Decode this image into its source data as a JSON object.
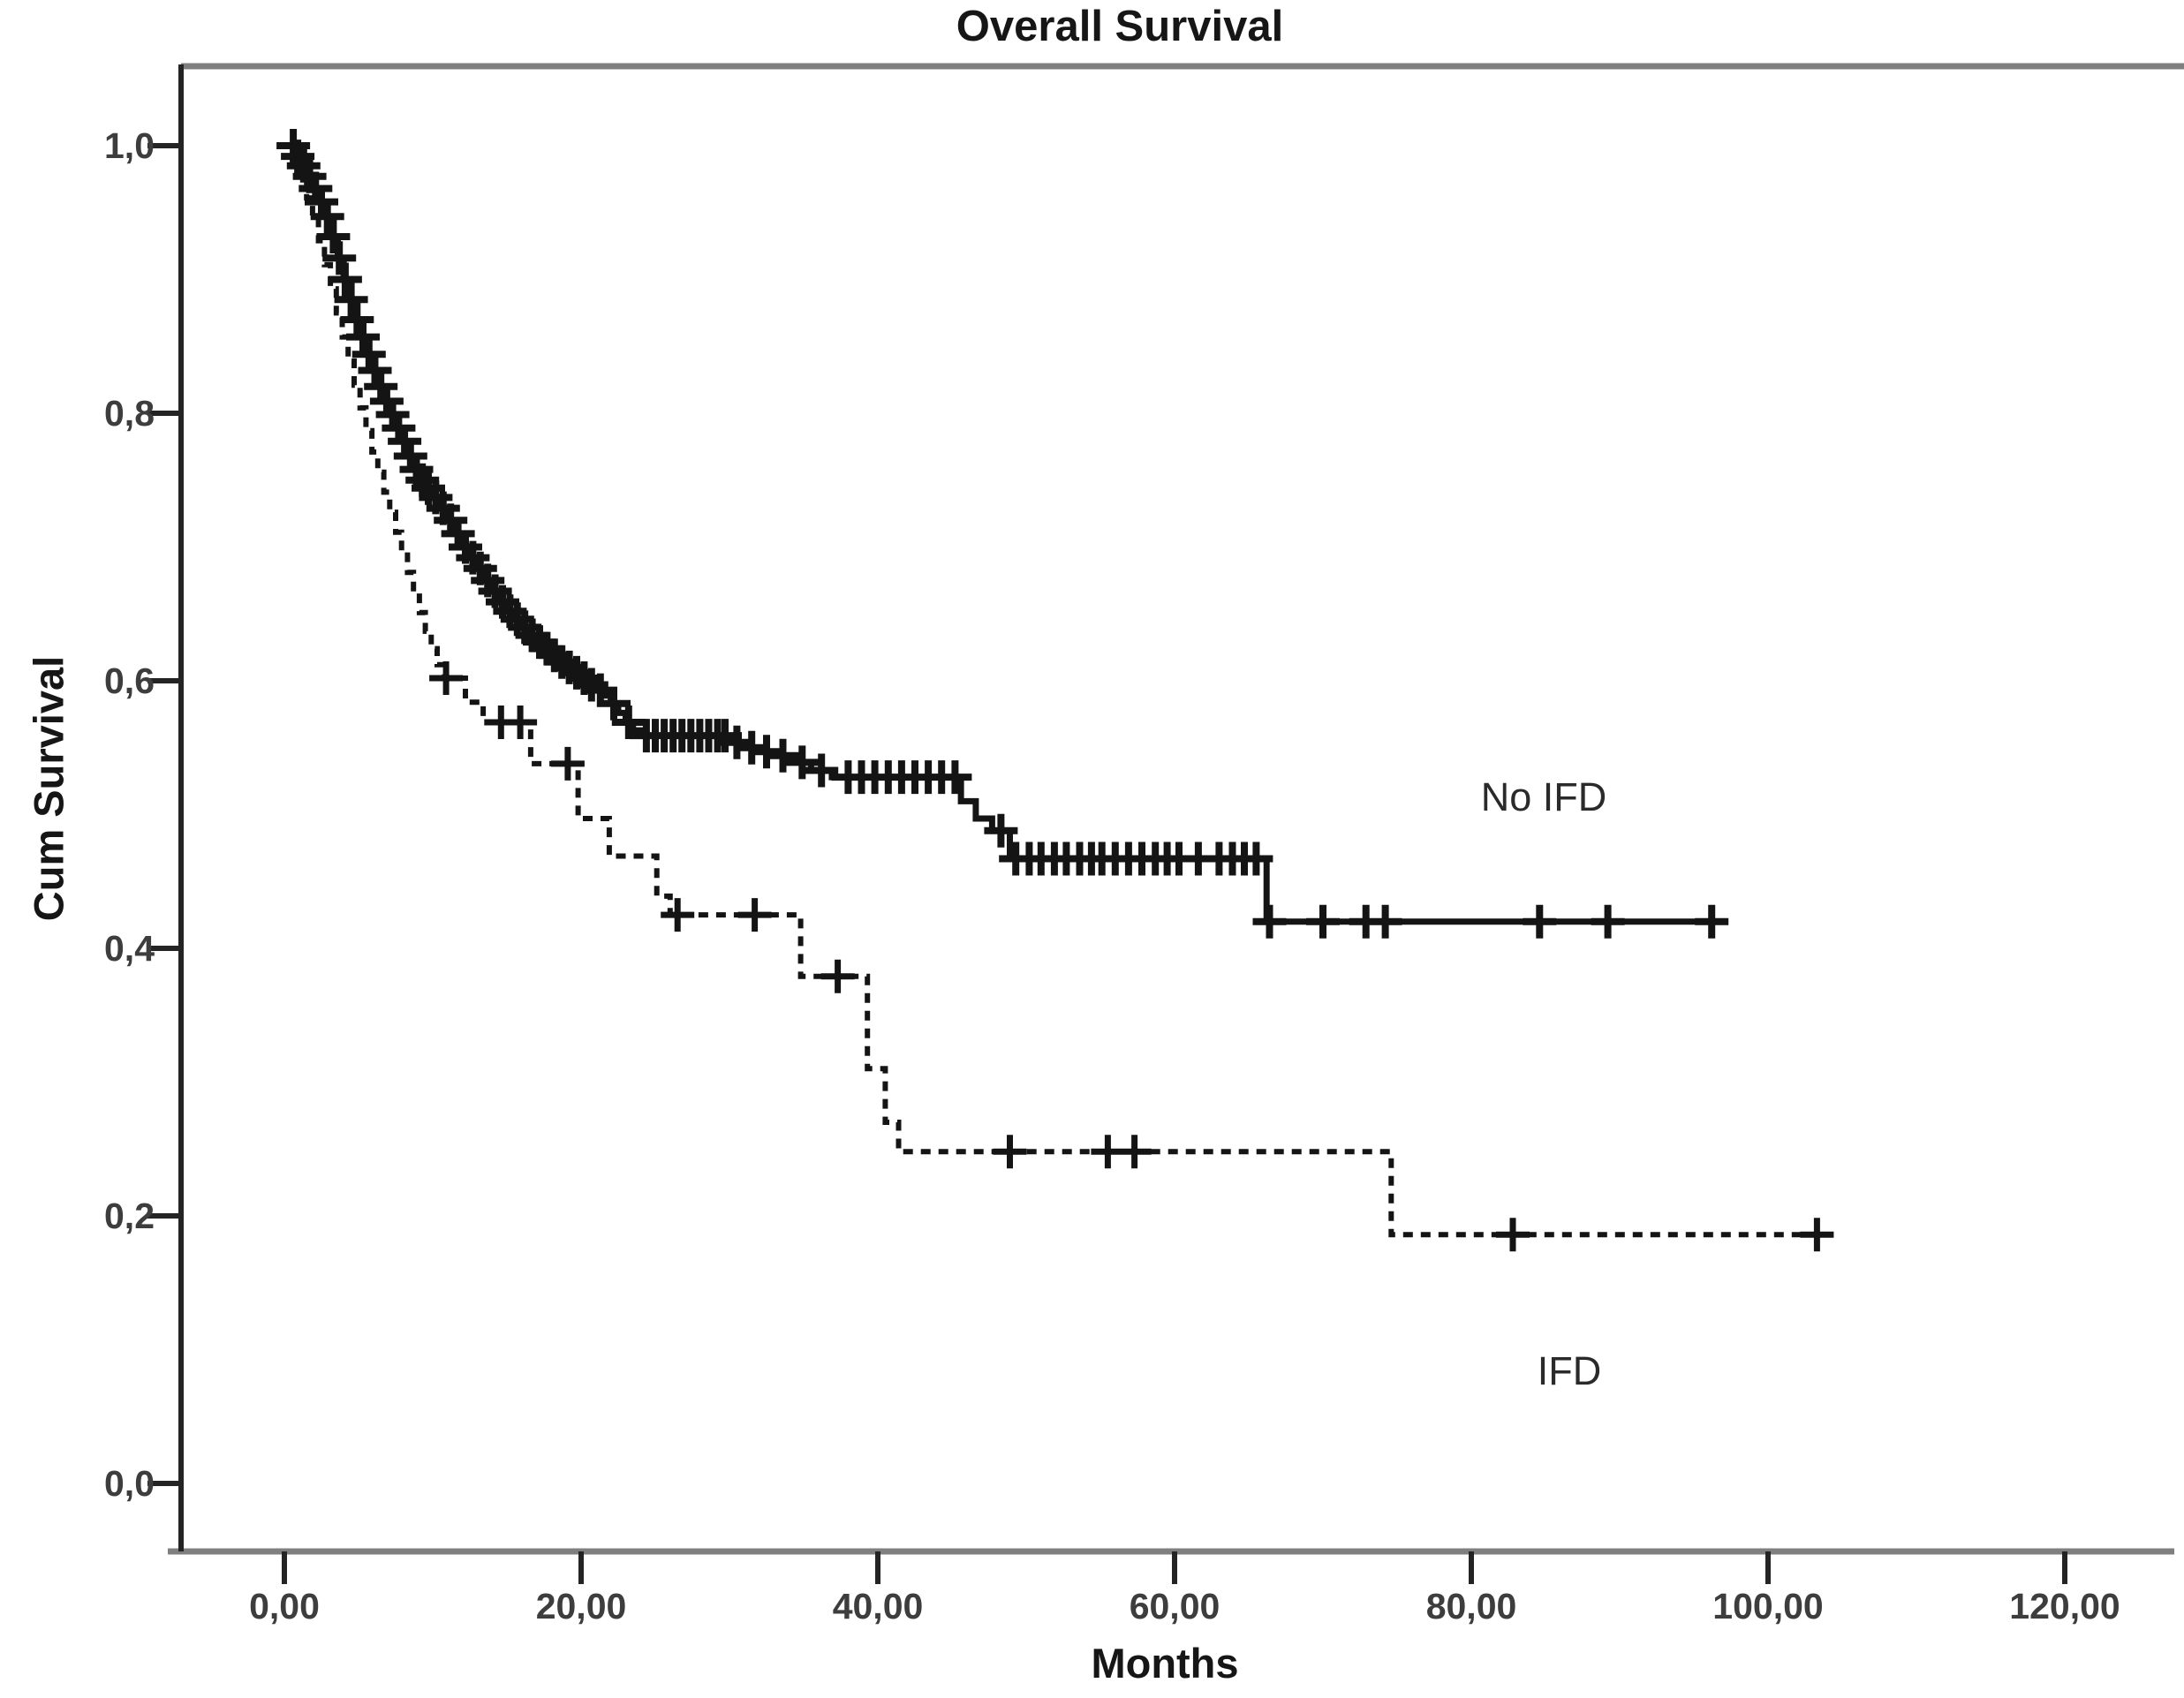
{
  "title": "Overall Survival",
  "x_axis": {
    "label": "Months",
    "tick_labels": [
      "0,00",
      "20,00",
      "40,00",
      "60,00",
      "80,00",
      "100,00",
      "120,00"
    ],
    "tick_months": [
      0,
      20,
      40,
      60,
      80,
      100,
      120
    ]
  },
  "y_axis": {
    "label": "Cum Survival",
    "tick_labels": [
      "1,0",
      "0,8",
      "0,6",
      "0,4",
      "0,2",
      "0,0"
    ],
    "tick_values": [
      1.0,
      0.8,
      0.6,
      0.4,
      0.2,
      0.0
    ]
  },
  "colors": {
    "curve": "#141414",
    "frame_gray": "#7f7f7f",
    "axis_dark": "#242424",
    "tick_text": "#3d3d3d",
    "label_text": "#2a2a2a"
  },
  "chart_data": {
    "type": "line",
    "subtype": "kaplan_meier_step",
    "title": "Overall Survival",
    "xlabel": "Months",
    "ylabel": "Cum Survival",
    "xlim": [
      0,
      120
    ],
    "ylim": [
      0.0,
      1.0
    ],
    "x_ticks": [
      0,
      20,
      40,
      60,
      80,
      100,
      120
    ],
    "y_ticks": [
      1.0,
      0.8,
      0.6,
      0.4,
      0.2,
      0.0
    ],
    "grid": false,
    "legend": "in-plot text annotations",
    "series": [
      {
        "name": "No IFD",
        "line_style": "solid",
        "label_anchor": {
          "month": 84.9,
          "survival": 0.513
        },
        "steps": [
          [
            0,
            1.0
          ],
          [
            0.8,
            0.992
          ],
          [
            1.2,
            0.985
          ],
          [
            1.6,
            0.977
          ],
          [
            2.0,
            0.968
          ],
          [
            2.4,
            0.958
          ],
          [
            2.8,
            0.947
          ],
          [
            3.2,
            0.932
          ],
          [
            3.6,
            0.916
          ],
          [
            4.0,
            0.9
          ],
          [
            4.4,
            0.885
          ],
          [
            4.8,
            0.87
          ],
          [
            5.2,
            0.857
          ],
          [
            5.6,
            0.844
          ],
          [
            6.0,
            0.832
          ],
          [
            6.4,
            0.82
          ],
          [
            6.8,
            0.809
          ],
          [
            7.2,
            0.799
          ],
          [
            7.6,
            0.789
          ],
          [
            8.0,
            0.779
          ],
          [
            8.4,
            0.768
          ],
          [
            8.8,
            0.758
          ],
          [
            9.2,
            0.75
          ],
          [
            9.6,
            0.744
          ],
          [
            10.0,
            0.737
          ],
          [
            10.5,
            0.729
          ],
          [
            11.0,
            0.72
          ],
          [
            11.5,
            0.71
          ],
          [
            12.0,
            0.7
          ],
          [
            12.5,
            0.692
          ],
          [
            13.0,
            0.684
          ],
          [
            13.5,
            0.675
          ],
          [
            14.0,
            0.667
          ],
          [
            14.5,
            0.659
          ],
          [
            15.0,
            0.652
          ],
          [
            15.5,
            0.646
          ],
          [
            16.0,
            0.64
          ],
          [
            16.5,
            0.634
          ],
          [
            17.0,
            0.629
          ],
          [
            17.5,
            0.624
          ],
          [
            18.0,
            0.619
          ],
          [
            18.5,
            0.614
          ],
          [
            19.0,
            0.61
          ],
          [
            19.5,
            0.606
          ],
          [
            20.0,
            0.602
          ],
          [
            20.5,
            0.597
          ],
          [
            21.0,
            0.593
          ],
          [
            21.5,
            0.589
          ],
          [
            22.0,
            0.583
          ],
          [
            22.5,
            0.576
          ],
          [
            23.0,
            0.569
          ],
          [
            23.5,
            0.563
          ],
          [
            24.0,
            0.559
          ],
          [
            30.0,
            0.554
          ],
          [
            31.0,
            0.55
          ],
          [
            32.0,
            0.547
          ],
          [
            33.0,
            0.544
          ],
          [
            34.3,
            0.539
          ],
          [
            35.5,
            0.533
          ],
          [
            36.9,
            0.528
          ],
          [
            45.6,
            0.51
          ],
          [
            46.6,
            0.497
          ],
          [
            47.7,
            0.488
          ],
          [
            48.9,
            0.467
          ],
          [
            66.2,
            0.42
          ],
          [
            96.5,
            0.42
          ]
        ],
        "censor_marks": [
          [
            0.6,
            1.0
          ],
          [
            0.9,
            0.992
          ],
          [
            1.3,
            0.985
          ],
          [
            1.7,
            0.977
          ],
          [
            2.1,
            0.968
          ],
          [
            2.5,
            0.958
          ],
          [
            2.9,
            0.947
          ],
          [
            3.3,
            0.932
          ],
          [
            3.7,
            0.916
          ],
          [
            4.1,
            0.9
          ],
          [
            4.5,
            0.885
          ],
          [
            4.9,
            0.87
          ],
          [
            5.3,
            0.857
          ],
          [
            5.7,
            0.844
          ],
          [
            6.1,
            0.832
          ],
          [
            6.5,
            0.82
          ],
          [
            6.9,
            0.809
          ],
          [
            7.3,
            0.799
          ],
          [
            7.7,
            0.789
          ],
          [
            8.1,
            0.779
          ],
          [
            8.5,
            0.768
          ],
          [
            8.9,
            0.758
          ],
          [
            9.3,
            0.75
          ],
          [
            9.7,
            0.744
          ],
          [
            10.2,
            0.737
          ],
          [
            10.7,
            0.729
          ],
          [
            11.2,
            0.72
          ],
          [
            11.7,
            0.71
          ],
          [
            12.2,
            0.7
          ],
          [
            12.7,
            0.692
          ],
          [
            13.2,
            0.684
          ],
          [
            13.7,
            0.675
          ],
          [
            14.2,
            0.667
          ],
          [
            14.7,
            0.659
          ],
          [
            15.2,
            0.652
          ],
          [
            15.7,
            0.646
          ],
          [
            16.2,
            0.64
          ],
          [
            16.7,
            0.634
          ],
          [
            17.2,
            0.629
          ],
          [
            17.7,
            0.624
          ],
          [
            18.2,
            0.619
          ],
          [
            18.7,
            0.614
          ],
          [
            19.2,
            0.61
          ],
          [
            19.7,
            0.606
          ],
          [
            20.2,
            0.602
          ],
          [
            20.7,
            0.597
          ],
          [
            21.3,
            0.593
          ],
          [
            22.2,
            0.583
          ],
          [
            23.2,
            0.569
          ],
          [
            24.4,
            0.559
          ],
          [
            25.0,
            0.559
          ],
          [
            25.6,
            0.559
          ],
          [
            26.2,
            0.559
          ],
          [
            26.8,
            0.559
          ],
          [
            27.4,
            0.559
          ],
          [
            28.0,
            0.559
          ],
          [
            28.6,
            0.559
          ],
          [
            29.2,
            0.559
          ],
          [
            29.7,
            0.559
          ],
          [
            30.5,
            0.554
          ],
          [
            31.5,
            0.55
          ],
          [
            32.5,
            0.547
          ],
          [
            33.6,
            0.544
          ],
          [
            34.9,
            0.539
          ],
          [
            36.2,
            0.533
          ],
          [
            38.0,
            0.528
          ],
          [
            38.9,
            0.528
          ],
          [
            39.8,
            0.528
          ],
          [
            40.7,
            0.528
          ],
          [
            41.6,
            0.528
          ],
          [
            42.5,
            0.528
          ],
          [
            43.4,
            0.528
          ],
          [
            44.3,
            0.528
          ],
          [
            45.2,
            0.528
          ],
          [
            48.3,
            0.488
          ],
          [
            49.3,
            0.467
          ],
          [
            50.2,
            0.467
          ],
          [
            51.0,
            0.467
          ],
          [
            51.9,
            0.467
          ],
          [
            52.7,
            0.467
          ],
          [
            53.6,
            0.467
          ],
          [
            54.4,
            0.467
          ],
          [
            55.1,
            0.467
          ],
          [
            56.0,
            0.467
          ],
          [
            56.9,
            0.467
          ],
          [
            57.8,
            0.467
          ],
          [
            58.7,
            0.467
          ],
          [
            59.5,
            0.467
          ],
          [
            60.3,
            0.467
          ],
          [
            61.6,
            0.467
          ],
          [
            63.0,
            0.467
          ],
          [
            63.9,
            0.467
          ],
          [
            64.7,
            0.467
          ],
          [
            65.5,
            0.467
          ],
          [
            66.4,
            0.42
          ],
          [
            70.0,
            0.42
          ],
          [
            72.9,
            0.42
          ],
          [
            74.2,
            0.42
          ],
          [
            84.6,
            0.42
          ],
          [
            89.2,
            0.42
          ],
          [
            96.2,
            0.42
          ]
        ]
      },
      {
        "name": "IFD",
        "line_style": "dashed",
        "label_anchor": {
          "month": 86.6,
          "survival": 0.084
        },
        "steps": [
          [
            0,
            1.0
          ],
          [
            0.7,
            0.99
          ],
          [
            1.1,
            0.976
          ],
          [
            1.5,
            0.961
          ],
          [
            1.9,
            0.946
          ],
          [
            2.3,
            0.929
          ],
          [
            2.7,
            0.911
          ],
          [
            3.1,
            0.893
          ],
          [
            3.5,
            0.875
          ],
          [
            3.9,
            0.857
          ],
          [
            4.3,
            0.839
          ],
          [
            4.7,
            0.821
          ],
          [
            5.1,
            0.804
          ],
          [
            5.5,
            0.787
          ],
          [
            5.9,
            0.771
          ],
          [
            6.3,
            0.756
          ],
          [
            6.7,
            0.741
          ],
          [
            7.1,
            0.726
          ],
          [
            7.5,
            0.711
          ],
          [
            7.9,
            0.696
          ],
          [
            8.3,
            0.681
          ],
          [
            8.7,
            0.666
          ],
          [
            9.1,
            0.651
          ],
          [
            9.5,
            0.637
          ],
          [
            9.9,
            0.624
          ],
          [
            10.3,
            0.612
          ],
          [
            10.8,
            0.602
          ],
          [
            12.2,
            0.584
          ],
          [
            13.4,
            0.569
          ],
          [
            16.6,
            0.538
          ],
          [
            19.8,
            0.497
          ],
          [
            21.9,
            0.469
          ],
          [
            25.1,
            0.439
          ],
          [
            26.0,
            0.425
          ],
          [
            34.8,
            0.379
          ],
          [
            39.3,
            0.31
          ],
          [
            40.5,
            0.27
          ],
          [
            41.4,
            0.248
          ],
          [
            74.6,
            0.186
          ],
          [
            104.0,
            0.186
          ]
        ],
        "censor_marks": [
          [
            10.9,
            0.602
          ],
          [
            14.6,
            0.569
          ],
          [
            15.9,
            0.569
          ],
          [
            19.1,
            0.538
          ],
          [
            26.5,
            0.425
          ],
          [
            31.7,
            0.425
          ],
          [
            37.3,
            0.379
          ],
          [
            48.9,
            0.248
          ],
          [
            55.5,
            0.248
          ],
          [
            57.3,
            0.248
          ],
          [
            82.8,
            0.186
          ],
          [
            103.3,
            0.186
          ]
        ]
      }
    ]
  }
}
